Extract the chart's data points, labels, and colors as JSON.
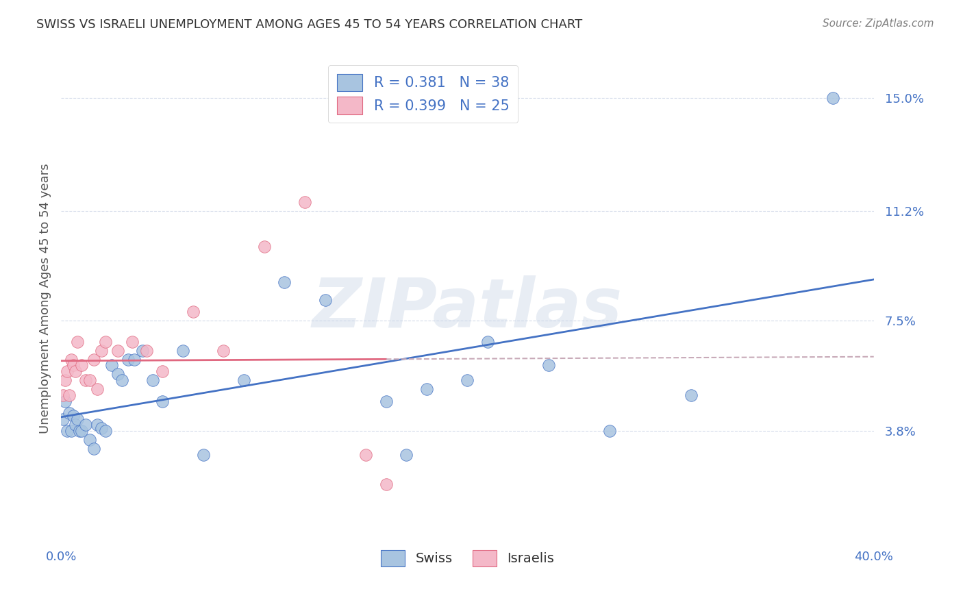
{
  "title": "SWISS VS ISRAELI UNEMPLOYMENT AMONG AGES 45 TO 54 YEARS CORRELATION CHART",
  "source": "Source: ZipAtlas.com",
  "ylabel": "Unemployment Among Ages 45 to 54 years",
  "xlim": [
    0.0,
    0.4
  ],
  "ylim": [
    0.0,
    0.165
  ],
  "ytick_positions": [
    0.038,
    0.075,
    0.112,
    0.15
  ],
  "ytick_labels": [
    "3.8%",
    "7.5%",
    "11.2%",
    "15.0%"
  ],
  "swiss_R": "0.381",
  "swiss_N": "38",
  "israeli_R": "0.399",
  "israeli_N": "25",
  "swiss_color": "#a8c4e0",
  "israeli_color": "#f4b8c8",
  "swiss_line_color": "#4472c4",
  "israeli_line_color": "#e06880",
  "dashed_line_color": "#c8aab8",
  "watermark": "ZIPatlas",
  "swiss_x": [
    0.001,
    0.002,
    0.003,
    0.004,
    0.005,
    0.006,
    0.007,
    0.008,
    0.009,
    0.01,
    0.012,
    0.014,
    0.016,
    0.018,
    0.02,
    0.022,
    0.025,
    0.028,
    0.03,
    0.033,
    0.036,
    0.04,
    0.045,
    0.05,
    0.06,
    0.07,
    0.09,
    0.11,
    0.13,
    0.16,
    0.18,
    0.21,
    0.27,
    0.31,
    0.2,
    0.24,
    0.17,
    0.38
  ],
  "swiss_y": [
    0.042,
    0.048,
    0.038,
    0.044,
    0.038,
    0.043,
    0.04,
    0.042,
    0.038,
    0.038,
    0.04,
    0.035,
    0.032,
    0.04,
    0.039,
    0.038,
    0.06,
    0.057,
    0.055,
    0.062,
    0.062,
    0.065,
    0.055,
    0.048,
    0.065,
    0.03,
    0.055,
    0.088,
    0.082,
    0.048,
    0.052,
    0.068,
    0.038,
    0.05,
    0.055,
    0.06,
    0.03,
    0.15
  ],
  "israeli_x": [
    0.001,
    0.002,
    0.003,
    0.004,
    0.005,
    0.006,
    0.007,
    0.008,
    0.01,
    0.012,
    0.014,
    0.016,
    0.018,
    0.02,
    0.022,
    0.028,
    0.035,
    0.042,
    0.05,
    0.065,
    0.08,
    0.1,
    0.12,
    0.15,
    0.16
  ],
  "israeli_y": [
    0.05,
    0.055,
    0.058,
    0.05,
    0.062,
    0.06,
    0.058,
    0.068,
    0.06,
    0.055,
    0.055,
    0.062,
    0.052,
    0.065,
    0.068,
    0.065,
    0.068,
    0.065,
    0.058,
    0.078,
    0.065,
    0.1,
    0.115,
    0.03,
    0.02
  ],
  "background_color": "#ffffff",
  "grid_color": "#d0d8e8",
  "title_color": "#333333",
  "axis_label_color": "#4472c4",
  "tick_label_color": "#4472c4"
}
